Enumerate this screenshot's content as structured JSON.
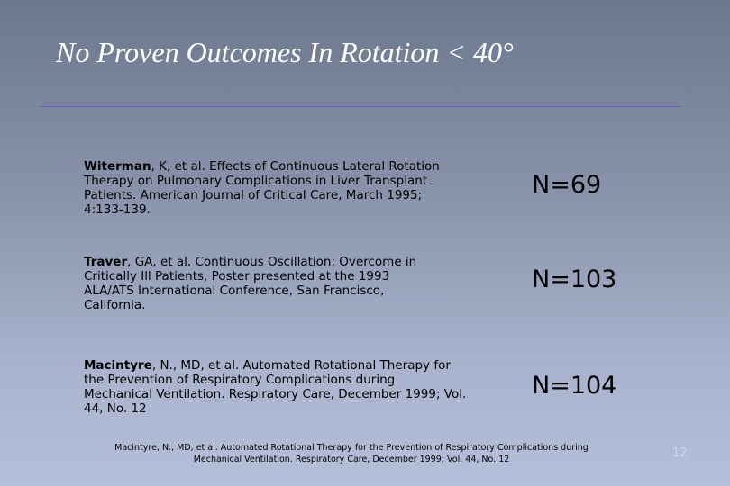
{
  "title": "No Proven Outcomes In Rotation < 40°",
  "references": [
    {
      "author": "Witerman",
      "text": ", K, et al. Effects of Continuous Lateral Rotation Therapy on Pulmonary Complications in Liver Transplant Patients. American Journal of Critical Care, March 1995; 4:133-139.",
      "n": "N=69"
    },
    {
      "author": "Traver",
      "text": ", GA, et al. Continuous Oscillation: Overcome in Critically Ill Patients, Poster presented at the 1993 ALA/ATS International Conference, San Francisco, California.",
      "n": "N=103"
    },
    {
      "author": "Macintyre",
      "text": ", N., MD, et al. Automated Rotational Therapy for the Prevention of Respiratory Complications during Mechanical Ventilation. Respiratory Care, December 1999; Vol. 44, No. 12",
      "n": "N=104"
    }
  ],
  "footnote": "Macintyre, N., MD, et al. Automated Rotational Therapy for the Prevention of Respiratory Complications during Mechanical Ventilation. Respiratory Care, December 1999; Vol. 44, No. 12",
  "page_number": "12"
}
